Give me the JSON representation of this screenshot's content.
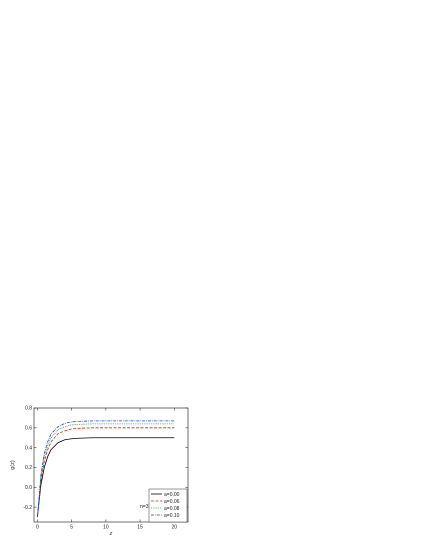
{
  "chart_data": {
    "type": "line",
    "title": "",
    "xlabel": "z",
    "ylabel": "g(z)",
    "xlim": [
      -0.5,
      22
    ],
    "ylim": [
      -0.35,
      0.8
    ],
    "xticks": [
      0,
      5,
      10,
      15,
      20
    ],
    "yticks": [
      -0.2,
      0.0,
      0.2,
      0.4,
      0.6,
      0.8
    ],
    "ytick_labels": [
      "-0.2",
      "0.0",
      "0.2",
      "0.4",
      "0.6",
      "0.8"
    ],
    "xtick_labels": [
      "0",
      "5",
      "10",
      "15",
      "20"
    ],
    "grid": false,
    "legend_position": "bottom-right",
    "annotation": "n=3",
    "x": [
      0,
      0.5,
      1,
      1.5,
      2,
      3,
      4,
      5,
      6,
      8,
      10,
      12,
      15,
      18,
      20
    ],
    "series": [
      {
        "name": "a=0.00",
        "color": "#000000",
        "dash": "solid",
        "values": [
          -0.3,
          0.02,
          0.2,
          0.31,
          0.38,
          0.45,
          0.48,
          0.49,
          0.495,
          0.5,
          0.5,
          0.5,
          0.5,
          0.5,
          0.5
        ]
      },
      {
        "name": "a=0.06",
        "color": "#d62020",
        "dash": "dashed",
        "values": [
          -0.3,
          0.06,
          0.26,
          0.38,
          0.46,
          0.54,
          0.57,
          0.59,
          0.595,
          0.6,
          0.6,
          0.6,
          0.6,
          0.6,
          0.6
        ]
      },
      {
        "name": "a=0.08",
        "color": "#1a8f2a",
        "dash": "dotted",
        "values": [
          -0.3,
          0.09,
          0.3,
          0.42,
          0.5,
          0.58,
          0.61,
          0.63,
          0.635,
          0.64,
          0.64,
          0.64,
          0.64,
          0.64,
          0.64
        ]
      },
      {
        "name": "a=0.10",
        "color": "#1f3fd6",
        "dash": "dashdot",
        "values": [
          -0.3,
          0.12,
          0.34,
          0.46,
          0.54,
          0.61,
          0.645,
          0.66,
          0.665,
          0.67,
          0.67,
          0.67,
          0.67,
          0.67,
          0.67
        ]
      }
    ]
  }
}
